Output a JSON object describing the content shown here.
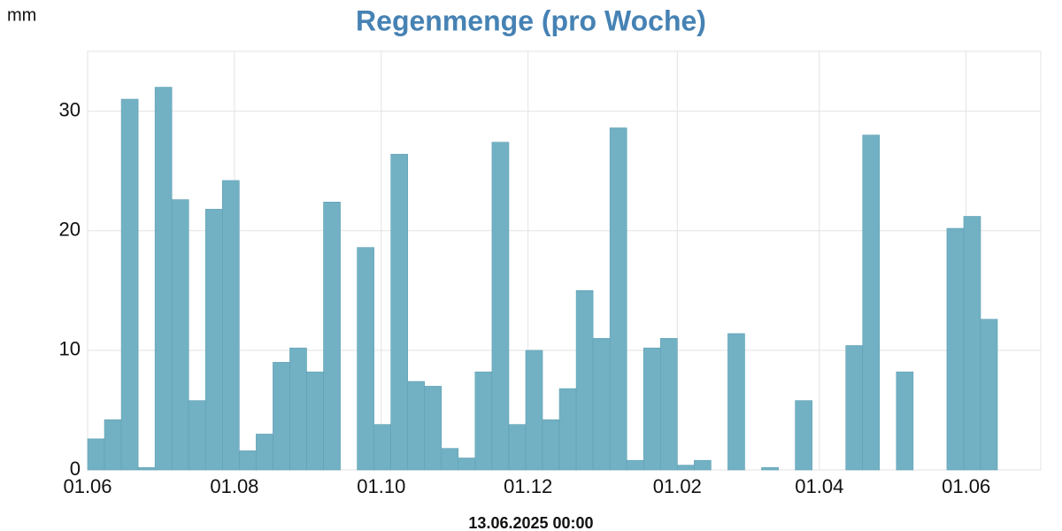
{
  "chart_data": {
    "type": "bar",
    "title": "Regenmenge (pro Woche)",
    "y_label": "mm",
    "x_label": "13.06.2025 00:00",
    "color": "#72b1c4",
    "grid": true,
    "x": [
      "01.06",
      "08.06",
      "15.06",
      "22.06",
      "29.06",
      "06.07",
      "13.07",
      "20.07",
      "27.07",
      "03.08",
      "10.08",
      "17.08",
      "24.08",
      "31.08",
      "07.09",
      "14.09",
      "21.09",
      "28.09",
      "05.10",
      "12.10",
      "19.10",
      "26.10",
      "02.11",
      "09.11",
      "16.11",
      "23.11",
      "30.11",
      "07.12",
      "14.12",
      "21.12",
      "28.12",
      "04.01",
      "11.01",
      "18.01",
      "25.01",
      "01.02",
      "08.02",
      "15.02",
      "22.02",
      "01.03",
      "08.03",
      "15.03",
      "22.03",
      "29.03",
      "05.04",
      "12.04",
      "19.04",
      "26.04",
      "03.05",
      "10.05",
      "17.05",
      "24.05",
      "31.05",
      "07.06"
    ],
    "values": [
      2.6,
      4.2,
      31.0,
      0.2,
      32.0,
      22.6,
      5.8,
      21.8,
      24.2,
      1.6,
      3.0,
      9.0,
      10.2,
      8.2,
      22.4,
      0,
      18.6,
      3.8,
      26.4,
      7.4,
      7.0,
      1.8,
      1.0,
      8.2,
      27.4,
      3.8,
      10.0,
      4.2,
      6.8,
      15.0,
      11.0,
      28.6,
      0.8,
      10.2,
      11.0,
      0.4,
      0.8,
      0,
      11.4,
      0,
      0.2,
      0,
      5.8,
      0,
      0,
      10.4,
      28.0,
      0,
      8.2,
      0,
      0,
      20.2,
      21.2,
      12.6
    ],
    "xlim": [
      "01.06",
      "02.07"
    ],
    "xticks": [
      "01.06",
      "01.08",
      "01.10",
      "01.12",
      "01.02",
      "01.04",
      "01.06"
    ],
    "ylim": [
      0,
      35
    ],
    "yticks": [
      0,
      10,
      20,
      30
    ]
  }
}
